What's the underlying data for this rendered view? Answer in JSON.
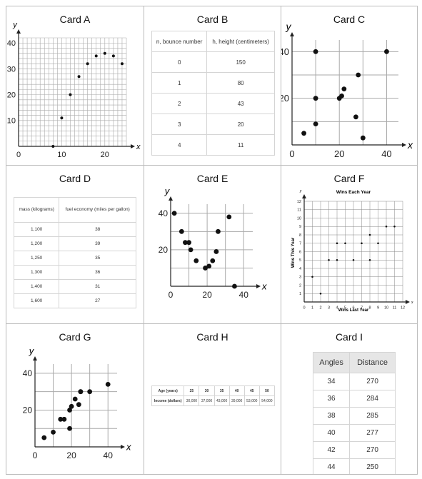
{
  "chart_data": [
    {
      "card": "Card A",
      "type": "scatter",
      "x": [
        8,
        10,
        12,
        14,
        16,
        18,
        20,
        22,
        24
      ],
      "y": [
        0,
        11,
        20,
        27,
        32,
        35,
        36,
        35,
        32
      ],
      "xlim": [
        0,
        25
      ],
      "ylim": [
        0,
        42
      ],
      "xticks": [
        0,
        10,
        20
      ],
      "yticks": [
        10,
        20,
        30,
        40
      ],
      "xlabel": "x",
      "ylabel": "y",
      "grid": true
    },
    {
      "card": "Card B",
      "type": "table",
      "columns": [
        "n, bounce number",
        "h, height (centimeters)"
      ],
      "rows": [
        [
          "0",
          "150"
        ],
        [
          "1",
          "80"
        ],
        [
          "2",
          "43"
        ],
        [
          "3",
          "20"
        ],
        [
          "4",
          "11"
        ]
      ]
    },
    {
      "card": "Card C",
      "type": "scatter",
      "x": [
        5,
        10,
        10,
        10,
        20,
        21,
        22,
        27,
        28,
        30,
        40
      ],
      "y": [
        5,
        40,
        20,
        9,
        20,
        21,
        24,
        12,
        30,
        3,
        40
      ],
      "xlim": [
        0,
        45
      ],
      "ylim": [
        0,
        45
      ],
      "xticks": [
        0,
        20,
        40
      ],
      "yticks": [
        20,
        40
      ],
      "xlabel": "x",
      "ylabel": "y",
      "grid": true
    },
    {
      "card": "Card D",
      "type": "table",
      "columns": [
        "mass (kilograms)",
        "fuel economy (miles per gallon)"
      ],
      "rows": [
        [
          "1,100",
          "38"
        ],
        [
          "1,200",
          "39"
        ],
        [
          "1,250",
          "35"
        ],
        [
          "1,300",
          "36"
        ],
        [
          "1,400",
          "31"
        ],
        [
          "1,600",
          "27"
        ]
      ]
    },
    {
      "card": "Card E",
      "type": "scatter",
      "x": [
        2,
        6,
        8,
        10,
        11,
        14,
        19,
        21,
        23,
        25,
        26,
        32,
        35
      ],
      "y": [
        40,
        30,
        24,
        24,
        20,
        14,
        10,
        11,
        14,
        19,
        30,
        38,
        0
      ],
      "xlim": [
        0,
        45
      ],
      "ylim": [
        0,
        45
      ],
      "xticks": [
        0,
        20,
        40
      ],
      "yticks": [
        20,
        40
      ],
      "xlabel": "x",
      "ylabel": "y",
      "grid": true
    },
    {
      "card": "Card F",
      "type": "scatter",
      "title": "Wins Each Year",
      "x": [
        1,
        2,
        3,
        4,
        4,
        5,
        6,
        7,
        8,
        8,
        9,
        10,
        11
      ],
      "y": [
        3,
        1,
        5,
        5,
        7,
        7,
        5,
        7,
        8,
        5,
        7,
        9,
        9
      ],
      "xlim": [
        0,
        12
      ],
      "ylim": [
        0,
        12
      ],
      "xticks": [
        0,
        1,
        2,
        3,
        4,
        5,
        6,
        7,
        8,
        9,
        10,
        11,
        12
      ],
      "yticks": [
        1,
        2,
        3,
        4,
        5,
        6,
        7,
        8,
        9,
        10,
        11,
        12
      ],
      "xlabel": "Wins Last Year",
      "ylabel": "Wins This Year",
      "x_axis_letter": "x",
      "y_axis_letter": "y",
      "grid": true
    },
    {
      "card": "Card G",
      "type": "scatter",
      "x": [
        5,
        10,
        14,
        16,
        19,
        19,
        20,
        22,
        24,
        25,
        25,
        30,
        40
      ],
      "y": [
        5,
        8,
        15,
        15,
        20,
        10,
        22,
        26,
        23,
        30,
        30,
        30,
        34
      ],
      "xlim": [
        0,
        45
      ],
      "ylim": [
        0,
        45
      ],
      "xticks": [
        0,
        20,
        40
      ],
      "yticks": [
        20,
        40
      ],
      "xlabel": "x",
      "ylabel": "y",
      "grid": true
    },
    {
      "card": "Card H",
      "type": "table",
      "row_labels": [
        "Age (years)",
        "Income (dollars)"
      ],
      "columns": [
        "25",
        "30",
        "35",
        "40",
        "45",
        "50"
      ],
      "rows": [
        [
          "30,000",
          "37,000",
          "43,000",
          "39,000",
          "53,000",
          "54,000"
        ]
      ]
    },
    {
      "card": "Card I",
      "type": "table",
      "columns": [
        "Angles",
        "Distance"
      ],
      "rows": [
        [
          "34",
          "270"
        ],
        [
          "36",
          "284"
        ],
        [
          "38",
          "285"
        ],
        [
          "40",
          "277"
        ],
        [
          "42",
          "270"
        ],
        [
          "44",
          "250"
        ]
      ]
    }
  ],
  "cards": {
    "a": {
      "title": "Card A"
    },
    "b": {
      "title": "Card B"
    },
    "c": {
      "title": "Card C"
    },
    "d": {
      "title": "Card D"
    },
    "e": {
      "title": "Card E"
    },
    "f": {
      "title": "Card F"
    },
    "g": {
      "title": "Card G"
    },
    "h": {
      "title": "Card H"
    },
    "i": {
      "title": "Card I"
    }
  }
}
